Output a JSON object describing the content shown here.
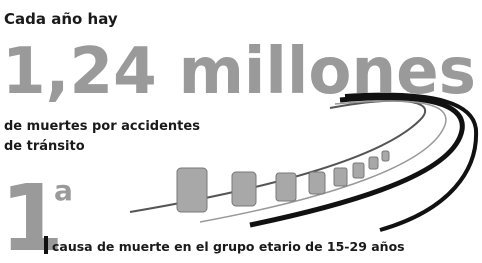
{
  "header": {
    "intro": "Cada año hay",
    "figure": "1,24 millones",
    "line1": "de muertes por accidentes",
    "line2": "de tránsito"
  },
  "rank": {
    "number": "1",
    "suffix": "a",
    "caption": "causa de muerte en el grupo etario de 15-29 años"
  }
}
